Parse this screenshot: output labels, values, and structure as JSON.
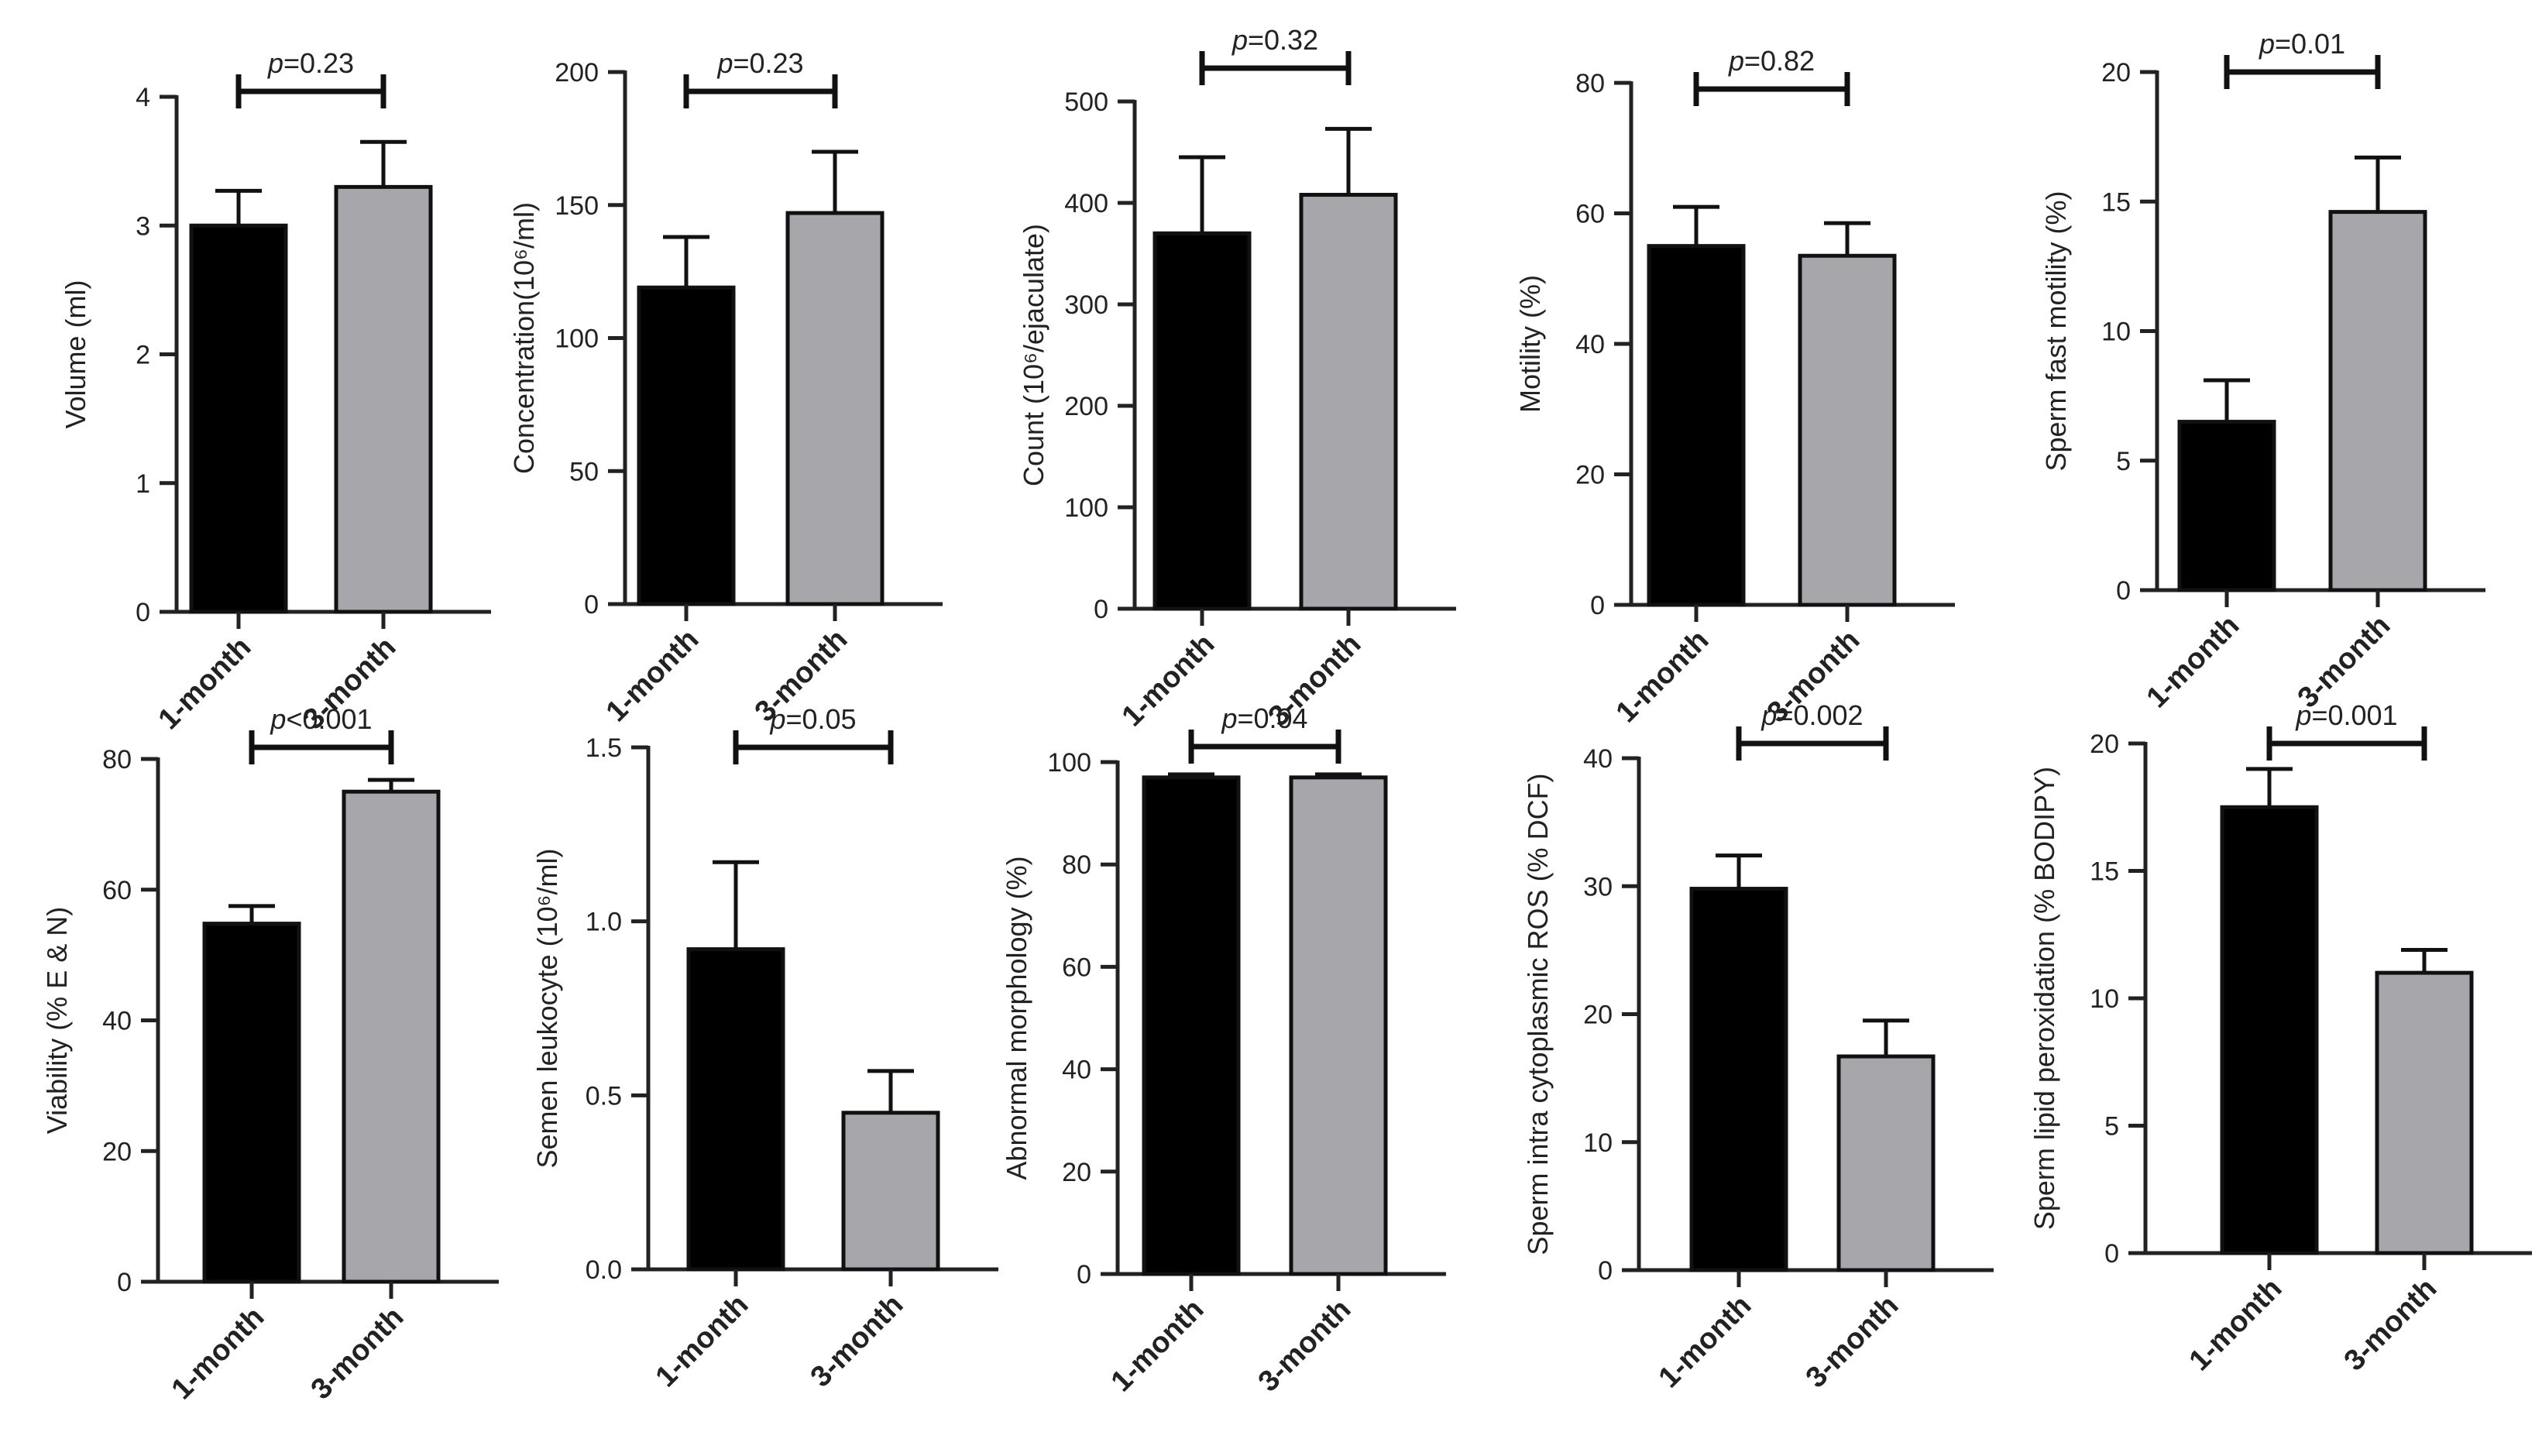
{
  "colors": {
    "black_bar": "#000000",
    "grey_bar": "#a7a7ab",
    "axis": "#222222"
  },
  "chart_data": [
    {
      "type": "bar",
      "ylabel": "Volume (ml)",
      "categories": [
        "1-month",
        "3-month"
      ],
      "values": [
        3.0,
        3.3
      ],
      "errors": [
        0.27,
        0.35
      ],
      "ylim": [
        0,
        4
      ],
      "ticks": [
        0,
        1,
        2,
        3,
        4
      ],
      "tick_labels": [
        "0",
        "1",
        "2",
        "3",
        "4"
      ],
      "p_label": "p=0.23"
    },
    {
      "type": "bar",
      "ylabel": "Concentration(10⁶/ml)",
      "categories": [
        "1-month",
        "3-month"
      ],
      "values": [
        119,
        147
      ],
      "errors": [
        19,
        23
      ],
      "ylim": [
        0,
        200
      ],
      "ticks": [
        0,
        50,
        100,
        150,
        200
      ],
      "tick_labels": [
        "0",
        "50",
        "100",
        "150",
        "200"
      ],
      "p_label": "p=0.23"
    },
    {
      "type": "bar",
      "ylabel": "Count (10⁶/ejaculate)",
      "categories": [
        "1-month",
        "3-month"
      ],
      "values": [
        370,
        408
      ],
      "errors": [
        75,
        65
      ],
      "ylim": [
        0,
        500
      ],
      "ticks": [
        0,
        100,
        200,
        300,
        400,
        500
      ],
      "tick_labels": [
        "0",
        "100",
        "200",
        "300",
        "400",
        "500"
      ],
      "p_label": "p=0.32"
    },
    {
      "type": "bar",
      "ylabel": "Motility (%)",
      "categories": [
        "1-month",
        "3-month"
      ],
      "values": [
        55,
        53.5
      ],
      "errors": [
        6,
        5
      ],
      "ylim": [
        0,
        80
      ],
      "ticks": [
        0,
        20,
        40,
        60,
        80
      ],
      "tick_labels": [
        "0",
        "20",
        "40",
        "60",
        "80"
      ],
      "p_label": "p=0.82"
    },
    {
      "type": "bar",
      "ylabel": "Sperm fast motility (%)",
      "categories": [
        "1-month",
        "3-month"
      ],
      "values": [
        6.5,
        14.6
      ],
      "errors": [
        1.6,
        2.1
      ],
      "ylim": [
        0,
        20
      ],
      "ticks": [
        0,
        5,
        10,
        15,
        20
      ],
      "tick_labels": [
        "0",
        "5",
        "10",
        "15",
        "20"
      ],
      "p_label": "p=0.01"
    },
    {
      "type": "bar",
      "ylabel": "Viability (% E & N)",
      "categories": [
        "1-month",
        "3-month"
      ],
      "values": [
        54.8,
        75
      ],
      "errors": [
        2.7,
        1.8
      ],
      "ylim": [
        0,
        80
      ],
      "ticks": [
        0,
        20,
        40,
        60,
        80
      ],
      "tick_labels": [
        "0",
        "20",
        "40",
        "60",
        "80"
      ],
      "p_label": "p<0.001"
    },
    {
      "type": "bar",
      "ylabel": "Semen leukocyte (10⁶/ml)",
      "categories": [
        "1-month",
        "3-month"
      ],
      "values": [
        0.92,
        0.45
      ],
      "errors": [
        0.25,
        0.12
      ],
      "ylim": [
        0,
        1.5
      ],
      "ticks": [
        0,
        0.5,
        1.0,
        1.5
      ],
      "tick_labels": [
        "0.0",
        "0.5",
        "1.0",
        "1.5"
      ],
      "p_label": "p=0.05"
    },
    {
      "type": "bar",
      "ylabel": "Abnormal morphology (%)",
      "categories": [
        "1-month",
        "3-month"
      ],
      "values": [
        97,
        97
      ],
      "errors": [
        0.6,
        0.6
      ],
      "ylim": [
        0,
        100
      ],
      "ticks": [
        0,
        20,
        40,
        60,
        80,
        100
      ],
      "tick_labels": [
        "0",
        "20",
        "40",
        "60",
        "80",
        "100"
      ],
      "p_label": "p=0.04"
    },
    {
      "type": "bar",
      "ylabel": "Sperm intra cytoplasmic ROS (% DCF)",
      "categories": [
        "1-month",
        "3-month"
      ],
      "values": [
        29.8,
        16.7
      ],
      "errors": [
        2.6,
        2.8
      ],
      "ylim": [
        0,
        40
      ],
      "ticks": [
        0,
        10,
        20,
        30,
        40
      ],
      "tick_labels": [
        "0",
        "10",
        "20",
        "30",
        "40"
      ],
      "p_label": "p=0.002"
    },
    {
      "type": "bar",
      "ylabel": "Sperm lipid peroxidation (% BODIPY)",
      "categories": [
        "1-month",
        "3-month"
      ],
      "values": [
        17.5,
        11
      ],
      "errors": [
        1.5,
        0.9
      ],
      "ylim": [
        0,
        20
      ],
      "ticks": [
        0,
        5,
        10,
        15,
        20
      ],
      "tick_labels": [
        "0",
        "5",
        "10",
        "15",
        "20"
      ],
      "p_label": "p=0.001"
    }
  ]
}
